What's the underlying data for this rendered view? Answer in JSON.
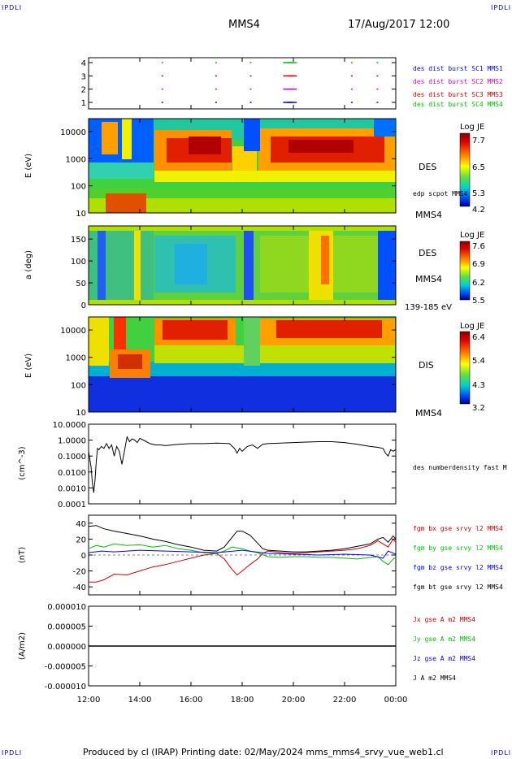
{
  "corners": {
    "tl": "IPDLI",
    "tr": "IPDLI",
    "bl": "IPDLI",
    "br": "IPDLI"
  },
  "header": {
    "spacecraft": "MMS4",
    "datetime": "17/Aug/2017 12:00"
  },
  "footer": {
    "text": "Produced by cl (IRAP)   Printing date: 02/May/2024   mms_mms4_srvy_vue_web1.cl"
  },
  "colors": {
    "c1": "#0000ff",
    "c2": "#d000d0",
    "c3": "#d00000",
    "c4": "#00c000",
    "black": "#000000"
  },
  "chart_data": [
    {
      "id": "availability",
      "type": "scatter",
      "yticks": [
        "4",
        "3",
        "2",
        "1"
      ],
      "legend": [
        "des dist burst SC1 MMS1",
        "des dist burst SC2 MMS2",
        "des dist burst SC3 MMS3",
        "des dist burst SC4 MMS4"
      ],
      "series": [
        {
          "row": 4,
          "color": "#00c000",
          "x": [
            14.85,
            16.95,
            18.3,
            19.6,
            19.75,
            22.25,
            23.25
          ]
        },
        {
          "row": 3,
          "color": "#d00000",
          "x": [
            14.85,
            16.95,
            18.3,
            19.6,
            19.75,
            22.25,
            23.25
          ]
        },
        {
          "row": 2,
          "color": "#d000d0",
          "x": [
            14.85,
            16.95,
            18.3,
            19.6,
            19.75,
            22.25,
            23.25
          ]
        },
        {
          "row": 1,
          "color": "#0000ff",
          "x": [
            14.85,
            16.95,
            18.3,
            19.6,
            19.75,
            22.25,
            23.25
          ]
        }
      ]
    },
    {
      "id": "des-energy",
      "type": "heatmap",
      "ylabel": "E (eV)",
      "yticks": [
        "10000",
        "1000",
        "100",
        "10"
      ],
      "side_label": "DES",
      "note": "edp scpot MMS4",
      "bottom_label": "MMS4",
      "colorbar": {
        "title": "Log JE",
        "ticks": [
          "7.7",
          "6.5",
          "5.3",
          "4.2"
        ]
      }
    },
    {
      "id": "des-pitch",
      "type": "heatmap",
      "ylabel": "a (deg)",
      "yticks": [
        "150",
        "100",
        "50",
        "0"
      ],
      "side_label": "DES",
      "side_label2": "MMS4",
      "bottom_label": "139-185 eV",
      "colorbar": {
        "title": "Log JE",
        "ticks": [
          "7.6",
          "6.9",
          "6.2",
          "5.5"
        ]
      }
    },
    {
      "id": "dis-energy",
      "type": "heatmap",
      "ylabel": "E (eV)",
      "yticks": [
        "10000",
        "1000",
        "100",
        "10"
      ],
      "side_label": "DIS",
      "bottom_label": "MMS4",
      "colorbar": {
        "title": "Log JE",
        "ticks": [
          "6.4",
          "5.4",
          "4.3",
          "3.2"
        ]
      }
    },
    {
      "id": "density",
      "type": "line",
      "ylabel": "(cm^-3)",
      "yscale": "log",
      "yticks": [
        "10.0000",
        "1.0000",
        "0.1000",
        "0.0100",
        "0.0010",
        "0.0001"
      ],
      "legend": [
        "des numberdensity fast M"
      ],
      "series": [
        {
          "name": "des numberdensity fast M",
          "color": "#000000",
          "x": [
            12.0,
            12.1,
            12.15,
            12.2,
            12.25,
            12.3,
            12.35,
            12.4,
            12.5,
            12.6,
            12.7,
            12.8,
            12.9,
            13.0,
            13.1,
            13.2,
            13.3,
            13.4,
            13.5,
            13.6,
            13.7,
            13.8,
            13.9,
            14.0,
            14.2,
            14.4,
            14.6,
            14.8,
            15.0,
            15.5,
            16.0,
            16.5,
            17.0,
            17.5,
            17.7,
            17.8,
            17.9,
            18.0,
            18.2,
            18.4,
            18.6,
            18.8,
            19.0,
            19.5,
            20.0,
            20.5,
            21.0,
            21.5,
            22.0,
            22.5,
            23.0,
            23.3,
            23.5,
            23.6,
            23.7,
            23.8,
            23.9,
            24.0
          ],
          "y": [
            0.2,
            0.02,
            0.002,
            0.0005,
            0.003,
            0.05,
            0.3,
            0.25,
            0.4,
            0.3,
            0.6,
            0.3,
            0.5,
            0.1,
            0.4,
            0.2,
            0.03,
            0.2,
            1.6,
            0.8,
            1.2,
            1.0,
            0.7,
            1.3,
            0.9,
            0.6,
            0.5,
            0.5,
            0.45,
            0.55,
            0.6,
            0.6,
            0.65,
            0.6,
            0.3,
            0.15,
            0.3,
            0.2,
            0.4,
            0.5,
            0.3,
            0.55,
            0.6,
            0.65,
            0.7,
            0.75,
            0.8,
            0.8,
            0.7,
            0.55,
            0.4,
            0.35,
            0.3,
            0.15,
            0.1,
            0.25,
            0.2,
            0.25
          ]
        }
      ]
    },
    {
      "id": "bfield",
      "type": "line",
      "ylabel": "(nT)",
      "yticks": [
        "40",
        "20",
        "0",
        "-20",
        "-40"
      ],
      "legend": [
        "fgm bx gse srvy l2 MMS4",
        "fgm by gse srvy l2 MMS4",
        "fgm bz gse srvy l2 MMS4",
        "fgm bt gse srvy l2 MMS4"
      ],
      "series": [
        {
          "name": "fgm bx gse srvy l2 MMS4",
          "color": "#d00000",
          "x": [
            12.0,
            12.3,
            12.6,
            13.0,
            13.5,
            14.0,
            14.5,
            15.0,
            15.5,
            16.0,
            16.5,
            17.0,
            17.3,
            17.6,
            17.8,
            18.0,
            18.3,
            18.6,
            18.8,
            19.0,
            19.3,
            19.6,
            20.0,
            20.5,
            21.0,
            21.5,
            22.0,
            22.5,
            23.0,
            23.3,
            23.5,
            23.7,
            23.9,
            24.0
          ],
          "y": [
            -34,
            -34,
            -31,
            -24,
            -25,
            -20,
            -15,
            -12,
            -8,
            -4,
            0,
            2,
            -5,
            -18,
            -25,
            -20,
            -12,
            -5,
            2,
            5,
            4,
            3,
            2,
            3,
            4,
            5,
            6,
            8,
            12,
            18,
            14,
            10,
            20,
            16
          ]
        },
        {
          "name": "fgm by gse srvy l2 MMS4",
          "color": "#00c000",
          "x": [
            12.0,
            12.3,
            12.6,
            13.0,
            13.5,
            14.0,
            14.5,
            15.0,
            15.5,
            16.0,
            16.5,
            17.0,
            17.3,
            17.6,
            18.0,
            18.3,
            18.6,
            19.0,
            19.5,
            20.0,
            20.5,
            21.0,
            21.5,
            22.0,
            22.5,
            23.0,
            23.3,
            23.5,
            23.7,
            23.9,
            24.0
          ],
          "y": [
            8,
            12,
            10,
            14,
            12,
            13,
            10,
            12,
            8,
            6,
            3,
            2,
            5,
            10,
            8,
            5,
            3,
            -2,
            -3,
            -2,
            -2,
            -3,
            -3,
            -4,
            -5,
            -3,
            -2,
            -8,
            -12,
            -5,
            -3
          ]
        },
        {
          "name": "fgm bz gse srvy l2 MMS4",
          "color": "#0000ff",
          "x": [
            12.0,
            12.5,
            13.0,
            14.0,
            15.0,
            16.0,
            17.0,
            18.0,
            19.0,
            20.0,
            21.0,
            22.0,
            23.0,
            23.5,
            23.7,
            24.0
          ],
          "y": [
            3,
            5,
            4,
            6,
            5,
            4,
            3,
            6,
            2,
            1,
            0,
            1,
            0,
            -4,
            5,
            1
          ]
        },
        {
          "name": "fgm bt gse srvy l2 MMS4",
          "color": "#000000",
          "x": [
            12.0,
            12.3,
            12.6,
            13.0,
            13.5,
            14.0,
            14.5,
            15.0,
            15.5,
            16.0,
            16.5,
            17.0,
            17.3,
            17.6,
            17.8,
            18.0,
            18.3,
            18.6,
            18.8,
            19.0,
            19.5,
            20.0,
            20.5,
            21.0,
            21.5,
            22.0,
            22.5,
            23.0,
            23.3,
            23.5,
            23.7,
            23.9,
            24.0
          ],
          "y": [
            36,
            37,
            33,
            30,
            27,
            24,
            20,
            17,
            13,
            10,
            6,
            5,
            10,
            22,
            30,
            30,
            25,
            15,
            8,
            6,
            5,
            4,
            4,
            5,
            6,
            8,
            11,
            14,
            20,
            22,
            16,
            24,
            20
          ]
        }
      ]
    },
    {
      "id": "current",
      "type": "line",
      "ylabel": "(A/m2)",
      "yticks": [
        "0.000010",
        "0.000005",
        "0.000000",
        "-0.000005",
        "-0.000010"
      ],
      "legend": [
        "Jx gse A m2 MMS4",
        "Jy gse A m2 MMS4",
        "Jz gse A m2 MMS4",
        "J A m2 MMS4"
      ],
      "legend_colors": [
        "#d00000",
        "#00c000",
        "#0000ff",
        "#000000"
      ],
      "series": [
        {
          "name": "J A m2 MMS4",
          "color": "#000000",
          "x": [
            12.0,
            24.0
          ],
          "y": [
            0,
            0
          ]
        }
      ]
    }
  ],
  "xaxis": {
    "ticks": [
      "12:00",
      "14:00",
      "16:00",
      "18:00",
      "20:00",
      "22:00",
      "00:00"
    ],
    "values": [
      12,
      14,
      16,
      18,
      20,
      22,
      24
    ]
  }
}
